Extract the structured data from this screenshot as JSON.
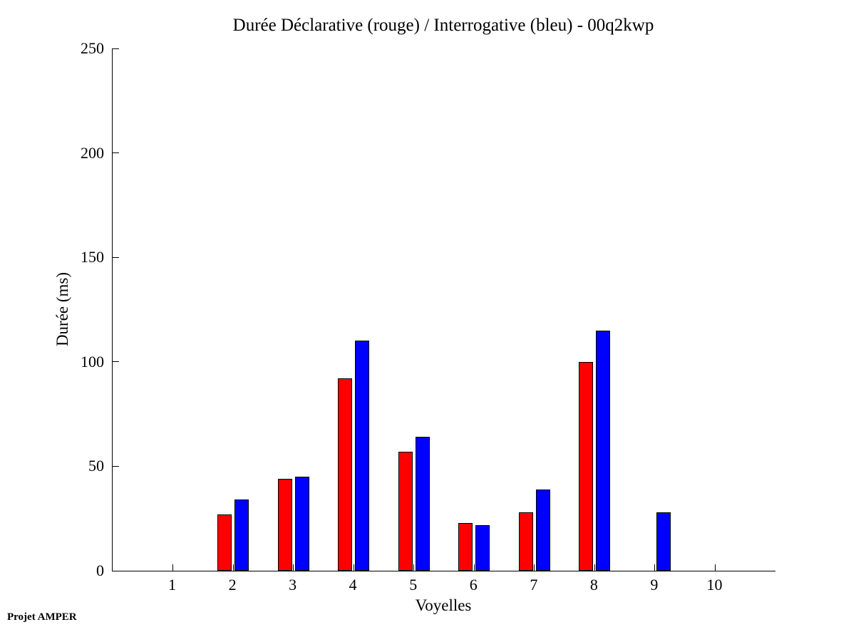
{
  "figure": {
    "background": "#ffffff",
    "footer_note": "Projet AMPER"
  },
  "chart_data": {
    "type": "bar",
    "title": "Durée Déclarative (rouge) / Interrogative (bleu) - 00q2kwp",
    "xlabel": "Voyelles",
    "ylabel": "Durée (ms)",
    "categories": [
      "1",
      "2",
      "3",
      "4",
      "5",
      "6",
      "7",
      "8",
      "9",
      "10"
    ],
    "series": [
      {
        "name": "Déclarative",
        "key": "declarative",
        "color": "#ff0000",
        "values": [
          0,
          27,
          44,
          92,
          57,
          23,
          28,
          100,
          0,
          0
        ]
      },
      {
        "name": "Interrogative",
        "key": "interrogative",
        "color": "#0000ff",
        "values": [
          0,
          34,
          45,
          110,
          64,
          22,
          39,
          115,
          28,
          0
        ]
      }
    ],
    "ylim": [
      0,
      250
    ],
    "yticks": [
      0,
      50,
      100,
      150,
      200,
      250
    ],
    "grid": false,
    "legend_position": "none-encoded-in-title",
    "axis_color": "#000000",
    "bar_border_color": "#000000"
  }
}
